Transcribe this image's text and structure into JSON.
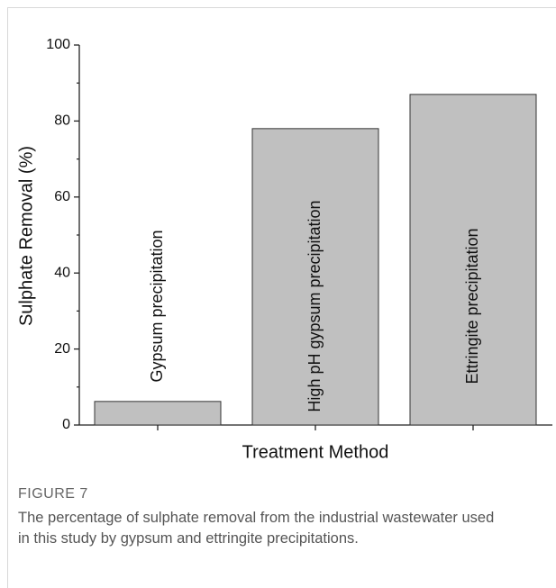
{
  "chart_data": {
    "type": "bar",
    "categories": [
      "Gypsum precipitation",
      "High pH gypsum precipitation",
      "Ettringite precipitation"
    ],
    "values": [
      6.2,
      78,
      87
    ],
    "color": "#c0c0c0",
    "ylabel": "Sulphate Removal (%)",
    "xlabel": "Treatment Method",
    "ylim": [
      0,
      100
    ],
    "yticks": [
      0,
      20,
      40,
      60,
      80,
      100
    ],
    "yminorticks": [
      10,
      30,
      50,
      70,
      90
    ],
    "grid": false
  },
  "figure": {
    "label": "FIGURE 7",
    "caption": "The percentage of sulphate removal from the industrial wastewater used in this study by gypsum and ettringite precipitations."
  }
}
